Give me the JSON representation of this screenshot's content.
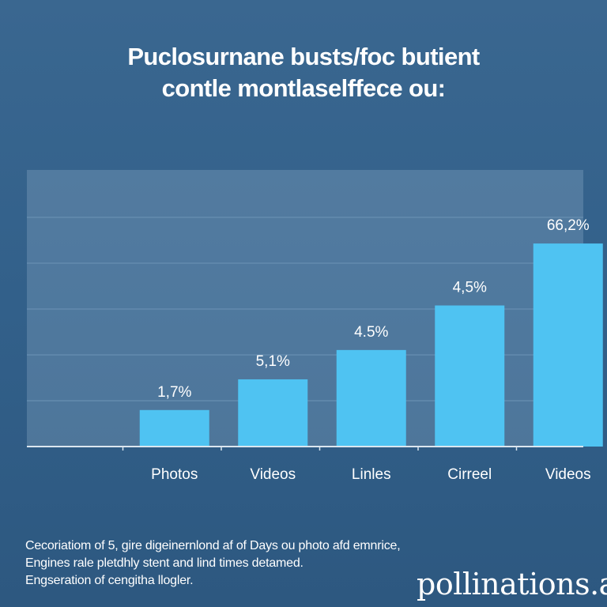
{
  "title": {
    "line1": "Puclosurnane busts/foc butient",
    "line2": "contle montlaselffece ou:"
  },
  "chart_data": {
    "type": "bar",
    "categories": [
      "",
      "Photos",
      "Videos",
      "Linles",
      "Cirreel",
      "Videos"
    ],
    "values": [
      null,
      1.7,
      5.1,
      4.5,
      4.5,
      66.2
    ],
    "data_labels": [
      "",
      "1,7%",
      "5,1%",
      "4.5%",
      "4,5%",
      "66,2%"
    ],
    "bar_heights_pct": [
      null,
      13.2,
      24.3,
      34.9,
      51.0,
      73.4
    ],
    "ylim": [
      0,
      100
    ],
    "grid": true,
    "legend": "none",
    "xlabel": "",
    "ylabel": "",
    "colors": {
      "bar": "#4fc3f2",
      "grid": "#6d94b6",
      "axis": "#dbe6ef",
      "label": "#ffffff"
    }
  },
  "note": {
    "line1": "Cecoriatiom of 5, gire digeinernlond af of Days ou photo afd emnrice,",
    "line2": "Engines rale pletdhly stent and lind times detamed.",
    "line3": "Engseration of cengitha llogler."
  },
  "watermark": "pollinations.ai"
}
